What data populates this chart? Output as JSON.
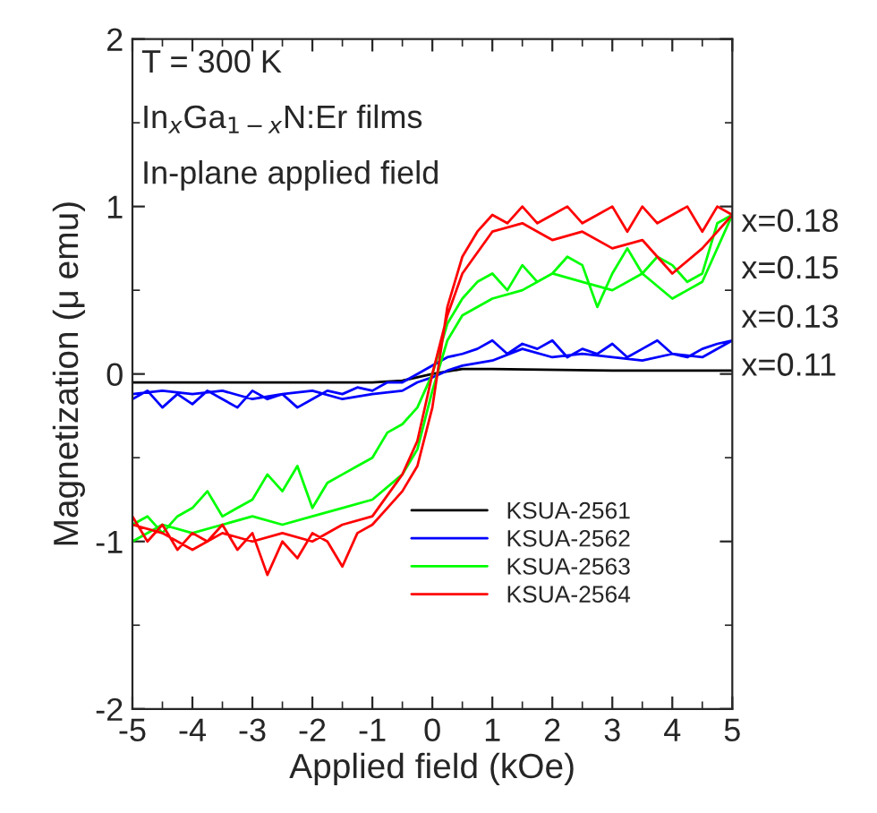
{
  "chart_data": {
    "type": "line",
    "xlabel": "Applied field (kOe)",
    "ylabel": "Magnetization (μ emu)",
    "xlim": [
      -5,
      5
    ],
    "xticks": [
      -5,
      -4,
      -3,
      -2,
      -1,
      0,
      1,
      2,
      3,
      4,
      5
    ],
    "ylim": [
      -2,
      2
    ],
    "yticks": [
      -2,
      -1,
      0,
      1,
      2
    ],
    "grid": false,
    "legend": "lower right",
    "marker": "none",
    "line_style": "solid",
    "annotations": [
      "T = 300 K",
      "In$_{x}$Ga$_{1−x}$N:Er films",
      "In-plane applied field",
      "x=0.18",
      "x=0.15",
      "x=0.13",
      "x=0.11"
    ],
    "series": [
      {
        "name": "KSUA-2561",
        "color": "#000000",
        "x": [
          -5,
          -3,
          -1,
          -0.5,
          0,
          0.5,
          1,
          3,
          5
        ],
        "values": [
          -0.05,
          -0.05,
          -0.05,
          -0.04,
          0.0,
          0.03,
          0.03,
          0.02,
          0.02
        ]
      },
      {
        "name": "KSUA-2562",
        "color": "#0000ff",
        "x": [
          -5,
          -4.75,
          -4.5,
          -4.25,
          -4,
          -3.75,
          -3.5,
          -3.25,
          -3,
          -2.75,
          -2.5,
          -2.25,
          -2,
          -1.75,
          -1.5,
          -1.25,
          -1,
          -0.75,
          -0.5,
          -0.25,
          0,
          0.25,
          0.5,
          0.75,
          1,
          1.25,
          1.5,
          1.75,
          2,
          2.25,
          2.5,
          2.75,
          3,
          3.25,
          3.5,
          3.75,
          4,
          4.25,
          4.5,
          4.75,
          5,
          4.5,
          4,
          3.5,
          3,
          2.5,
          2,
          1.5,
          1,
          0.5,
          0.25,
          0,
          -0.25,
          -0.5,
          -1,
          -1.5,
          -2,
          -2.5,
          -3,
          -3.5,
          -4,
          -4.5,
          -5
        ],
        "values": [
          -0.15,
          -0.1,
          -0.2,
          -0.12,
          -0.18,
          -0.1,
          -0.15,
          -0.2,
          -0.1,
          -0.15,
          -0.12,
          -0.2,
          -0.15,
          -0.1,
          -0.12,
          -0.08,
          -0.1,
          -0.05,
          -0.05,
          0.0,
          0.05,
          0.1,
          0.12,
          0.15,
          0.2,
          0.12,
          0.18,
          0.15,
          0.2,
          0.1,
          0.15,
          0.12,
          0.18,
          0.1,
          0.15,
          0.2,
          0.12,
          0.1,
          0.15,
          0.18,
          0.2,
          0.1,
          0.12,
          0.08,
          0.1,
          0.12,
          0.1,
          0.15,
          0.08,
          0.05,
          0.02,
          -0.02,
          -0.05,
          -0.1,
          -0.12,
          -0.15,
          -0.1,
          -0.12,
          -0.15,
          -0.1,
          -0.12,
          -0.1,
          -0.12
        ]
      },
      {
        "name": "KSUA-2563",
        "color": "#00ff00",
        "x": [
          -5,
          -4.75,
          -4.5,
          -4.25,
          -4,
          -3.75,
          -3.5,
          -3.25,
          -3,
          -2.75,
          -2.5,
          -2.25,
          -2,
          -1.75,
          -1.5,
          -1.25,
          -1,
          -0.75,
          -0.5,
          -0.25,
          0,
          0.25,
          0.5,
          0.75,
          1,
          1.25,
          1.5,
          1.75,
          2,
          2.25,
          2.5,
          2.75,
          3,
          3.25,
          3.5,
          3.75,
          4,
          4.25,
          4.5,
          4.75,
          5,
          4.5,
          4,
          3.5,
          3,
          2.5,
          2,
          1.5,
          1,
          0.5,
          0.25,
          0,
          -0.25,
          -0.5,
          -1,
          -1.5,
          -2,
          -2.5,
          -3,
          -3.5,
          -4,
          -4.5,
          -5
        ],
        "values": [
          -0.9,
          -0.85,
          -0.95,
          -0.85,
          -0.8,
          -0.7,
          -0.85,
          -0.8,
          -0.75,
          -0.6,
          -0.7,
          -0.55,
          -0.8,
          -0.65,
          -0.6,
          -0.55,
          -0.5,
          -0.35,
          -0.3,
          -0.2,
          0.0,
          0.3,
          0.45,
          0.55,
          0.6,
          0.5,
          0.65,
          0.55,
          0.6,
          0.7,
          0.65,
          0.4,
          0.6,
          0.75,
          0.6,
          0.7,
          0.65,
          0.55,
          0.6,
          0.9,
          0.95,
          0.55,
          0.45,
          0.6,
          0.5,
          0.55,
          0.6,
          0.5,
          0.45,
          0.35,
          0.2,
          -0.1,
          -0.45,
          -0.6,
          -0.75,
          -0.8,
          -0.85,
          -0.9,
          -0.85,
          -0.9,
          -0.95,
          -0.9,
          -1.0
        ]
      },
      {
        "name": "KSUA-2564",
        "color": "#ff0000",
        "x": [
          -5,
          -4.75,
          -4.5,
          -4.25,
          -4,
          -3.75,
          -3.5,
          -3.25,
          -3,
          -2.75,
          -2.5,
          -2.25,
          -2,
          -1.75,
          -1.5,
          -1.25,
          -1,
          -0.75,
          -0.5,
          -0.25,
          0,
          0.25,
          0.5,
          0.75,
          1,
          1.25,
          1.5,
          1.75,
          2,
          2.25,
          2.5,
          2.75,
          3,
          3.25,
          3.5,
          3.75,
          4,
          4.25,
          4.5,
          4.75,
          5,
          4.5,
          4,
          3.5,
          3,
          2.5,
          2,
          1.5,
          1,
          0.5,
          0.25,
          0,
          -0.25,
          -0.5,
          -1,
          -1.5,
          -2,
          -2.5,
          -3,
          -3.5,
          -4,
          -4.5,
          -5
        ],
        "values": [
          -0.85,
          -1.0,
          -0.9,
          -1.05,
          -0.95,
          -1.0,
          -0.9,
          -1.05,
          -0.95,
          -1.2,
          -1.0,
          -1.1,
          -0.95,
          -1.0,
          -1.15,
          -0.95,
          -0.9,
          -0.8,
          -0.7,
          -0.55,
          -0.2,
          0.4,
          0.7,
          0.85,
          0.95,
          0.9,
          1.0,
          0.9,
          0.95,
          1.0,
          0.9,
          0.95,
          1.0,
          0.85,
          1.0,
          0.9,
          0.95,
          1.0,
          0.85,
          1.0,
          0.95,
          0.75,
          0.6,
          0.8,
          0.75,
          0.85,
          0.8,
          0.9,
          0.85,
          0.6,
          0.35,
          0.0,
          -0.4,
          -0.6,
          -0.85,
          -0.9,
          -1.0,
          -0.95,
          -1.0,
          -0.95,
          -1.05,
          -0.95,
          -0.9
        ]
      }
    ]
  }
}
